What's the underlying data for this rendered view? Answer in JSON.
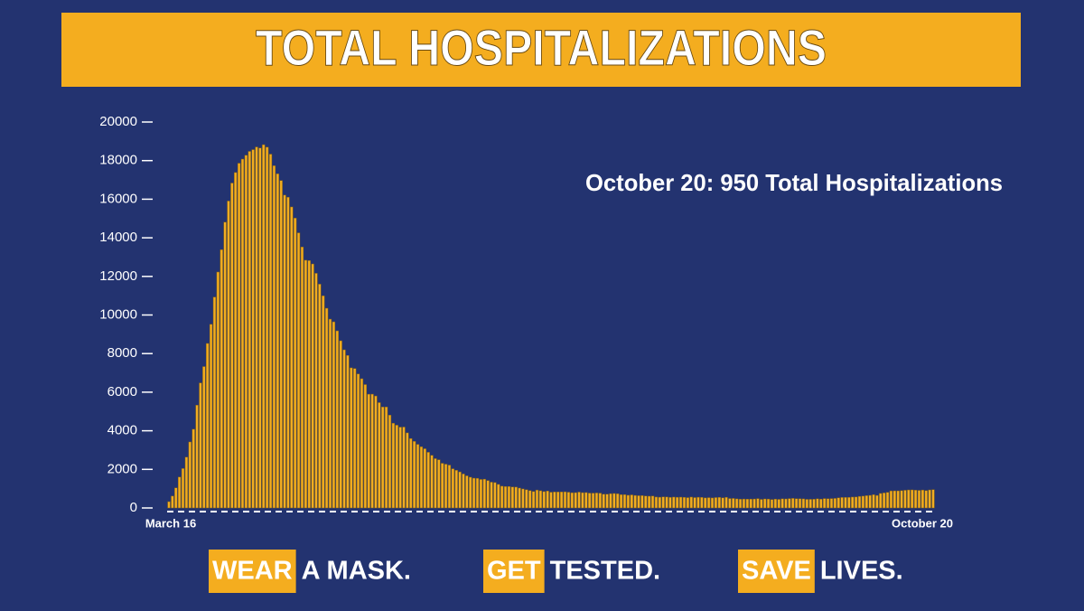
{
  "chart_data": {
    "type": "bar",
    "title": "TOTAL HOSPITALIZATIONS",
    "annotation": "October 20: 950 Total Hospitalizations",
    "footer": [
      {
        "highlight": "WEAR",
        "text": "A MASK."
      },
      {
        "highlight": "GET",
        "text": "TESTED."
      },
      {
        "highlight": "SAVE",
        "text": "LIVES."
      }
    ],
    "color": "#f2ad20",
    "ylim": [
      0,
      20000
    ],
    "yticks": [
      0,
      2000,
      4000,
      6000,
      8000,
      10000,
      12000,
      14000,
      16000,
      18000,
      20000
    ],
    "categories": [
      "March 16",
      null,
      null,
      null,
      null,
      null,
      null,
      null,
      null,
      null,
      null,
      null,
      null,
      null,
      null,
      null,
      null,
      null,
      null,
      null,
      null,
      null,
      null,
      null,
      null,
      null,
      null,
      null,
      null,
      null,
      null,
      null,
      null,
      null,
      null,
      null,
      null,
      null,
      null,
      null,
      null,
      null,
      null,
      null,
      null,
      null,
      null,
      null,
      null,
      null,
      null,
      null,
      null,
      null,
      null,
      null,
      null,
      null,
      null,
      null,
      null,
      null,
      null,
      null,
      null,
      null,
      null,
      null,
      null,
      null,
      null,
      null,
      null,
      null,
      null,
      null,
      null,
      null,
      null,
      null,
      null,
      null,
      null,
      null,
      null,
      null,
      null,
      null,
      null,
      null,
      null,
      null,
      null,
      null,
      null,
      null,
      null,
      null,
      null,
      null,
      null,
      null,
      null,
      null,
      null,
      null,
      null,
      null,
      null,
      null,
      null,
      null,
      null,
      null,
      null,
      null,
      null,
      null,
      null,
      null,
      null,
      null,
      null,
      null,
      null,
      null,
      null,
      null,
      null,
      null,
      null,
      null,
      null,
      null,
      null,
      null,
      null,
      null,
      null,
      null,
      null,
      null,
      null,
      null,
      null,
      null,
      null,
      null,
      null,
      null,
      null,
      null,
      null,
      null,
      null,
      null,
      null,
      null,
      null,
      null,
      null,
      null,
      null,
      null,
      null,
      null,
      null,
      null,
      null,
      null,
      null,
      null,
      null,
      null,
      null,
      null,
      null,
      null,
      null,
      null,
      null,
      null,
      null,
      null,
      null,
      null,
      null,
      null,
      null,
      null,
      null,
      null,
      null,
      null,
      null,
      null,
      null,
      null,
      null,
      null,
      null,
      null,
      null,
      null,
      null,
      null,
      null,
      null,
      null,
      null,
      null,
      null,
      null,
      null,
      null,
      null,
      null,
      null,
      "October 20"
    ],
    "values": [
      326,
      617,
      1042,
      1603,
      2043,
      2635,
      3421,
      4079,
      5327,
      6481,
      7328,
      8526,
      9517,
      10929,
      12226,
      13383,
      14810,
      15905,
      16837,
      17382,
      17865,
      18079,
      18278,
      18479,
      18569,
      18707,
      18654,
      18825,
      18697,
      18335,
      17735,
      17316,
      16967,
      16213,
      16103,
      15599,
      15021,
      14258,
      13524,
      12839,
      12819,
      12646,
      12159,
      11598,
      10993,
      10350,
      9786,
      9647,
      9179,
      8665,
      8196,
      7904,
      7262,
      7226,
      6946,
      6698,
      6394,
      5897,
      5898,
      5804,
      5459,
      5233,
      5233,
      4812,
      4393,
      4291,
      4189,
      4193,
      3892,
      3598,
      3451,
      3297,
      3171,
      3069,
      2886,
      2727,
      2557,
      2499,
      2316,
      2270,
      2221,
      2032,
      1953,
      1870,
      1762,
      1666,
      1594,
      1544,
      1538,
      1477,
      1493,
      1422,
      1337,
      1317,
      1222,
      1130,
      1111,
      1114,
      1087,
      1083,
      1031,
      986,
      947,
      900,
      853,
      929,
      892,
      848,
      878,
      817,
      831,
      830,
      832,
      838,
      818,
      789,
      795,
      822,
      793,
      799,
      771,
      769,
      777,
      769,
      716,
      716,
      741,
      750,
      735,
      689,
      692,
      659,
      678,
      651,
      636,
      640,
      621,
      610,
      618,
      568,
      557,
      576,
      570,
      548,
      565,
      554,
      561,
      552,
      536,
      565,
      539,
      555,
      548,
      522,
      536,
      520,
      540,
      548,
      525,
      553,
      490,
      494,
      472,
      454,
      463,
      458,
      460,
      465,
      486,
      444,
      468,
      462,
      437,
      460,
      445,
      474,
      469,
      487,
      496,
      482,
      478,
      471,
      446,
      448,
      453,
      477,
      456,
      488,
      479,
      487,
      495,
      526,
      544,
      547,
      547,
      565,
      571,
      601,
      615,
      638,
      654,
      686,
      650,
      753,
      778,
      809,
      885,
      889,
      888,
      899,
      917,
      935,
      937,
      922,
      911,
      929,
      900,
      935,
      950
    ]
  }
}
